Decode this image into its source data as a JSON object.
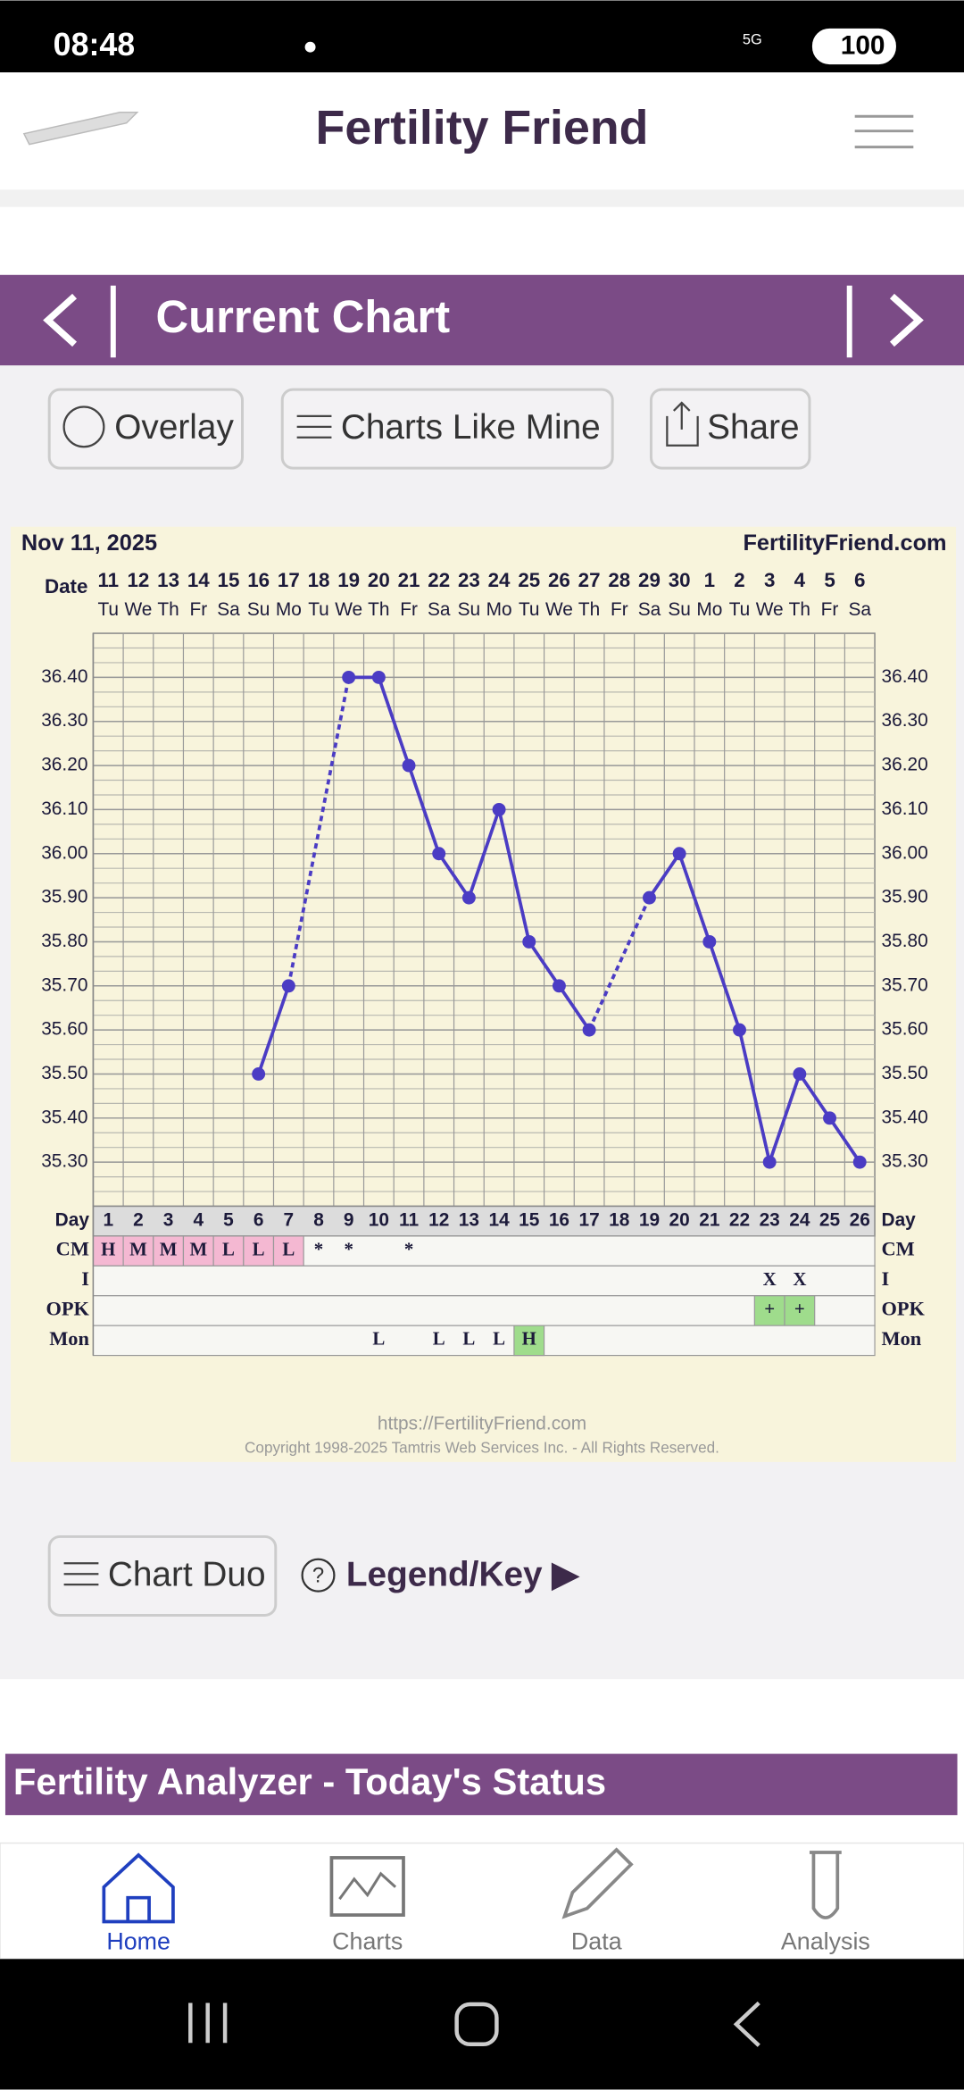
{
  "status_bar": {
    "time": "08:48",
    "network": "5G",
    "battery": "100"
  },
  "header": {
    "title": "Fertility Friend"
  },
  "nav": {
    "title": "Current Chart"
  },
  "buttons": [
    "Overlay",
    "Charts Like Mine",
    "Share"
  ],
  "chart_data": {
    "type": "line",
    "title": "Nov 11, 2025",
    "subtitle": "FertilityFriend.com",
    "date_label": "Date",
    "x_label": "Day",
    "dates": [
      11,
      12,
      13,
      14,
      15,
      16,
      17,
      18,
      19,
      20,
      21,
      22,
      23,
      24,
      25,
      26,
      27,
      28,
      29,
      30,
      1,
      2,
      3,
      4,
      5,
      6
    ],
    "weekdays": [
      "Tu",
      "We",
      "Th",
      "Fr",
      "Sa",
      "Su",
      "Mo",
      "Tu",
      "We",
      "Th",
      "Fr",
      "Sa",
      "Su",
      "Mo",
      "Tu",
      "We",
      "Th",
      "Fr",
      "Sa",
      "Su",
      "Mo",
      "Tu",
      "We",
      "Th",
      "Fr",
      "Sa"
    ],
    "categories": [
      1,
      2,
      3,
      4,
      5,
      6,
      7,
      8,
      9,
      10,
      11,
      12,
      13,
      14,
      15,
      16,
      17,
      18,
      19,
      20,
      21,
      22,
      23,
      24,
      25,
      26
    ],
    "color": "#4b3cc4",
    "values": [
      null,
      null,
      null,
      null,
      null,
      35.5,
      35.7,
      null,
      36.4,
      36.4,
      36.2,
      36.0,
      35.9,
      36.1,
      35.8,
      35.7,
      35.6,
      null,
      35.9,
      36.0,
      35.8,
      35.6,
      35.3,
      35.5,
      35.4,
      35.3
    ],
    "ylim": [
      35.2,
      36.5
    ],
    "yticks": [
      {
        "value": 35.3,
        "label": "35.30"
      },
      {
        "value": 35.4,
        "label": "35.40"
      },
      {
        "value": 35.5,
        "label": "35.50"
      },
      {
        "value": 35.6,
        "label": "35.60"
      },
      {
        "value": 35.7,
        "label": "35.70"
      },
      {
        "value": 35.8,
        "label": "35.80"
      },
      {
        "value": 35.9,
        "label": "35.90"
      },
      {
        "value": 36.0,
        "label": "36.00"
      },
      {
        "value": 36.1,
        "label": "36.10"
      },
      {
        "value": 36.2,
        "label": "36.20"
      },
      {
        "value": 36.3,
        "label": "36.30"
      },
      {
        "value": 36.4,
        "label": "36.40"
      }
    ],
    "grid": true,
    "rows": [
      {
        "label": "CM",
        "values": [
          "H",
          "M",
          "M",
          "M",
          "L",
          "L",
          "L",
          "*",
          "*",
          null,
          "*",
          null,
          null,
          null,
          null,
          null,
          null,
          null,
          null,
          null,
          null,
          null,
          null,
          null,
          null,
          null
        ],
        "cell_colors": [
          "#f4b8d2",
          "#f4b8d2",
          "#f4b8d2",
          "#f4b8d2",
          "#f4b8d2",
          "#f4b8d2",
          "#f4b8d2",
          null,
          null,
          null,
          null,
          null,
          null,
          null,
          null,
          null,
          null,
          null,
          null,
          null,
          null,
          null,
          null,
          null,
          null,
          null
        ]
      },
      {
        "label": "I",
        "values": [
          null,
          null,
          null,
          null,
          null,
          null,
          null,
          null,
          null,
          null,
          null,
          null,
          null,
          null,
          null,
          null,
          null,
          null,
          null,
          null,
          null,
          null,
          "X",
          "X",
          null,
          null
        ],
        "cell_colors": [
          null,
          null,
          null,
          null,
          null,
          null,
          null,
          null,
          null,
          null,
          null,
          null,
          null,
          null,
          null,
          null,
          null,
          null,
          null,
          null,
          null,
          null,
          null,
          null,
          null,
          null
        ]
      },
      {
        "label": "OPK",
        "values": [
          null,
          null,
          null,
          null,
          null,
          null,
          null,
          null,
          null,
          null,
          null,
          null,
          null,
          null,
          null,
          null,
          null,
          null,
          null,
          null,
          null,
          null,
          "+",
          "+",
          null,
          null
        ],
        "cell_colors": [
          null,
          null,
          null,
          null,
          null,
          null,
          null,
          null,
          null,
          null,
          null,
          null,
          null,
          null,
          null,
          null,
          null,
          null,
          null,
          null,
          null,
          null,
          "#9fdc8c",
          "#9fdc8c",
          null,
          null
        ]
      },
      {
        "label": "Mon",
        "values": [
          null,
          null,
          null,
          null,
          null,
          null,
          null,
          null,
          null,
          "L",
          null,
          "L",
          "L",
          "L",
          "H",
          null,
          null,
          null,
          null,
          null,
          null,
          null,
          null,
          null,
          null,
          null
        ],
        "cell_colors": [
          null,
          null,
          null,
          null,
          null,
          null,
          null,
          null,
          null,
          null,
          null,
          null,
          null,
          null,
          "#9fdc8c",
          null,
          null,
          null,
          null,
          null,
          null,
          null,
          null,
          null,
          null,
          null
        ]
      }
    ],
    "footer_url": "https://FertilityFriend.com",
    "copyright": "Copyright 1998-2025 Tamtris Web Services Inc. - All Rights Reserved."
  },
  "actions": [
    "Chart Duo",
    "Legend/Key ▶"
  ],
  "section_title": "Fertility Analyzer - Today's Status",
  "tabs": [
    "Home",
    "Charts",
    "Data",
    "Analysis"
  ]
}
